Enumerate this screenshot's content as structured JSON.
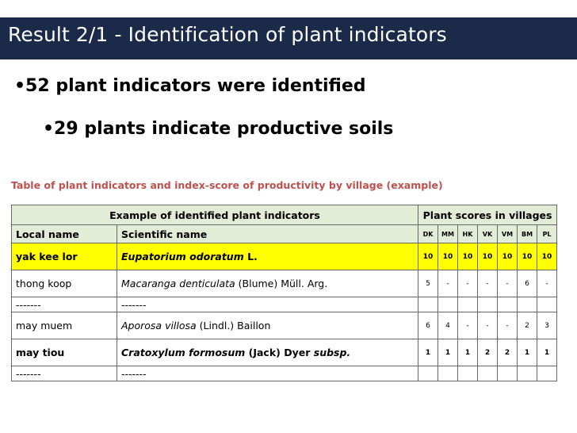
{
  "title": "Result 2/1 - Identification of plant indicators",
  "bullets": [
    "•52 plant indicators were identified",
    "•29 plants indicate productive soils"
  ],
  "caption": "Table of plant indicators and index-score of productivity by village (example)",
  "table": {
    "group_headers": [
      "Example of identified plant indicators",
      "Plant scores in villages"
    ],
    "columns": {
      "local": "Local name",
      "scientific": "Scientific name",
      "villages": [
        "DK",
        "MM",
        "HK",
        "VK",
        "VM",
        "BM",
        "PL"
      ]
    },
    "rows": [
      {
        "local": "yak kee lor",
        "sci_italic": "Eupatorium odoratum",
        "sci_rest": " L.",
        "sci_tail": "",
        "scores": [
          "10",
          "10",
          "10",
          "10",
          "10",
          "10",
          "10"
        ]
      },
      {
        "local": "thong koop",
        "sci_italic": "Macaranga denticulata",
        "sci_rest": " (Blume) Müll. Arg.",
        "sci_tail": "",
        "scores": [
          "5",
          "-",
          "-",
          "-",
          "-",
          "6",
          "-"
        ]
      },
      {
        "local": "-------",
        "sci_italic": "",
        "sci_rest": "-------",
        "sci_tail": "",
        "scores": [
          "",
          "",
          "",
          "",
          "",
          "",
          ""
        ]
      },
      {
        "local": "may muem",
        "sci_italic": "Aporosa villosa",
        "sci_rest": " (Lindl.) Baillon",
        "sci_tail": "",
        "scores": [
          "6",
          "4",
          "-",
          "-",
          "-",
          "2",
          "3"
        ]
      },
      {
        "local": "may tiou",
        "sci_italic": "Cratoxylum formosum",
        "sci_rest": " (Jack) Dyer ",
        "sci_tail": "subsp.",
        "scores": [
          "1",
          "1",
          "1",
          "2",
          "2",
          "1",
          "1"
        ]
      },
      {
        "local": "-------",
        "sci_italic": "",
        "sci_rest": "-------",
        "sci_tail": "",
        "scores": [
          "",
          "",
          "",
          "",
          "",
          "",
          ""
        ]
      }
    ]
  },
  "colors": {
    "title_bar": "#1b2a48",
    "caption": "#c0504d",
    "header_bg": "#e2ecd6",
    "highlight": "#ffff00"
  }
}
